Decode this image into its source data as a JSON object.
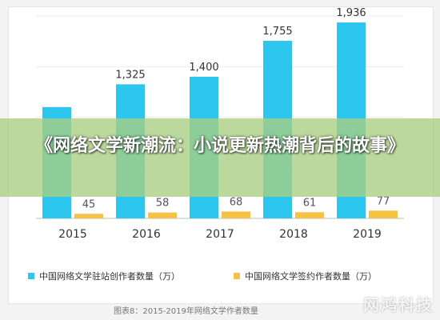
{
  "chart_data": {
    "type": "bar",
    "categories": [
      "2015",
      "2016",
      "2017",
      "2018",
      "2019"
    ],
    "series": [
      {
        "name": "中国网络文学驻站创作者数量（万）",
        "values": [
          1100,
          1325,
          1400,
          1755,
          1936
        ],
        "labels": [
          "",
          "1,325",
          "1,400",
          "1,755",
          "1,936"
        ],
        "color": "#2cc6ee"
      },
      {
        "name": "中国网络文学签约作者数量（万）",
        "values": [
          45,
          58,
          68,
          61,
          77
        ],
        "labels": [
          "45",
          "58",
          "68",
          "61",
          "77"
        ],
        "color": "#f6c243"
      }
    ],
    "ylim": [
      0,
      2000
    ],
    "grid": true,
    "legend_position": "bottom",
    "caption": "图表8：2015-2019年网络文学作者数量"
  },
  "overlay": {
    "headline": "《网络文学新潮流：小说更新热潮背后的故事》",
    "watermark": "网鸿科技"
  }
}
